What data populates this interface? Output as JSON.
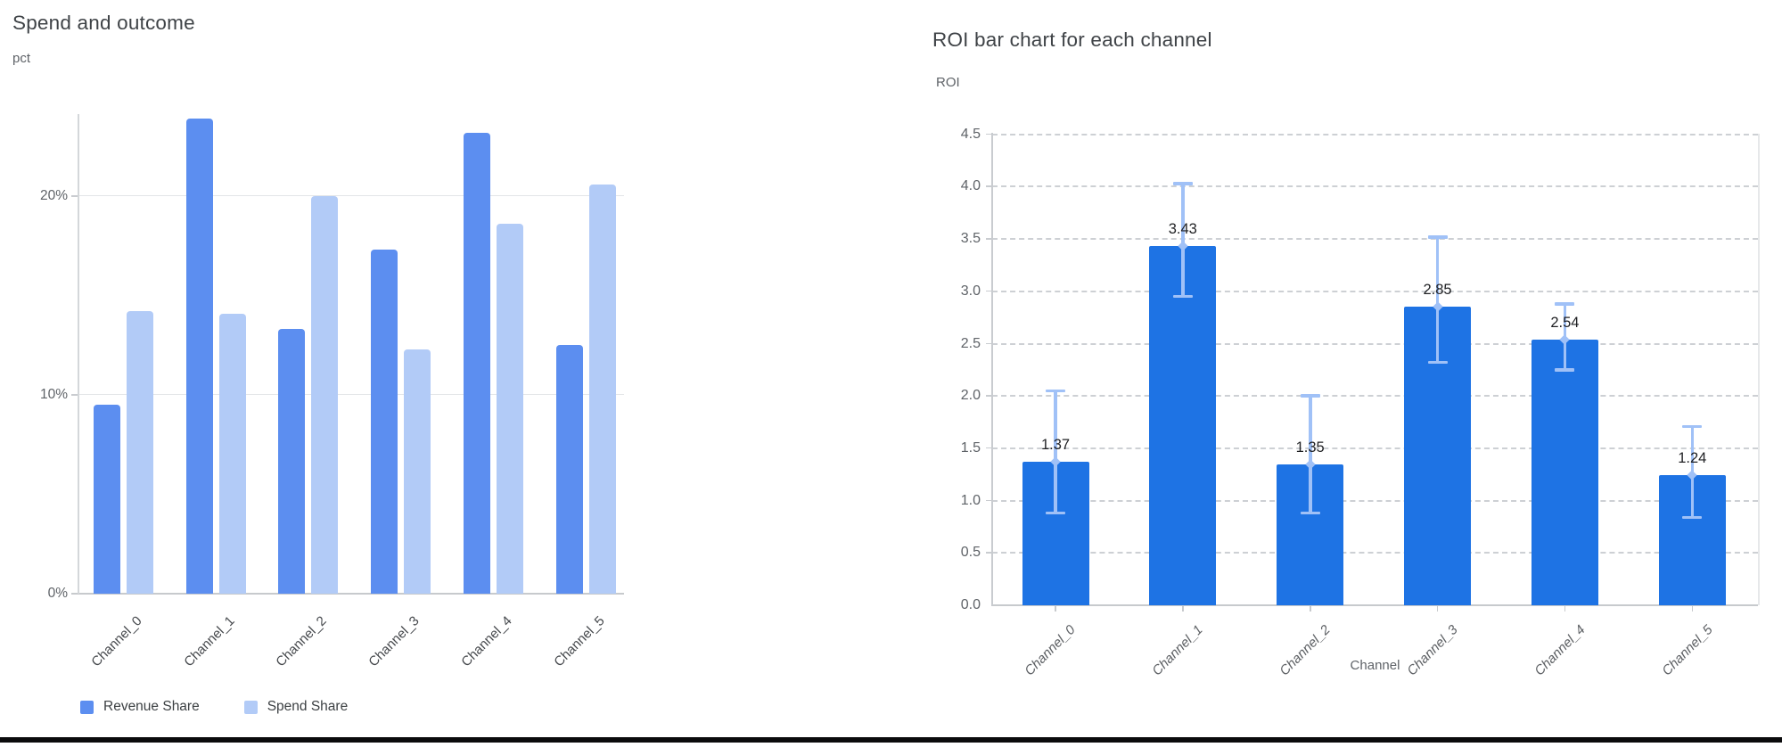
{
  "charts": {
    "left": {
      "title": "Spend and outcome",
      "y_unit_label": "pct"
    },
    "right": {
      "title": "ROI bar chart for each channel",
      "y_unit_label": "ROI",
      "x_axis_title": "Channel"
    }
  },
  "chart_data": [
    {
      "id": "spend-and-outcome",
      "type": "bar",
      "title": "Spend and outcome",
      "ylabel": "pct",
      "xlabel": "",
      "categories": [
        "Channel_0",
        "Channel_1",
        "Channel_2",
        "Channel_3",
        "Channel_4",
        "Channel_5"
      ],
      "series": [
        {
          "name": "Revenue Share",
          "color": "#5c8ef0",
          "values": [
            9.5,
            23.9,
            13.3,
            17.3,
            23.2,
            12.5
          ]
        },
        {
          "name": "Spend Share",
          "color": "#b2cbf7",
          "values": [
            14.2,
            14.1,
            20.0,
            12.3,
            18.6,
            20.6
          ]
        }
      ],
      "ylim": [
        0,
        25
      ],
      "yticks": [
        0,
        10,
        20
      ],
      "ytick_labels": [
        "0%",
        "10%",
        "20%"
      ],
      "grid": "horizontal-solid",
      "legend_position": "bottom"
    },
    {
      "id": "roi-by-channel",
      "type": "bar",
      "title": "ROI bar chart for each channel",
      "ylabel": "ROI",
      "xlabel": "Channel",
      "categories": [
        "Channel_0",
        "Channel_1",
        "Channel_2",
        "Channel_3",
        "Channel_4",
        "Channel_5"
      ],
      "values": [
        1.37,
        3.43,
        1.35,
        2.85,
        2.54,
        1.24
      ],
      "value_labels": [
        "1.37",
        "3.43",
        "1.35",
        "2.85",
        "2.54",
        "1.24"
      ],
      "error_low": [
        0.88,
        2.95,
        0.88,
        2.32,
        2.25,
        0.84
      ],
      "error_high": [
        2.05,
        4.03,
        2.0,
        3.52,
        2.88,
        1.71
      ],
      "bar_color": "#1e73e4",
      "error_color": "#a0c1f7",
      "ylim": [
        0,
        4.5
      ],
      "yticks": [
        0,
        0.5,
        1.0,
        1.5,
        2.0,
        2.5,
        3.0,
        3.5,
        4.0,
        4.5
      ],
      "ytick_labels": [
        "0.0",
        "0.5",
        "1.0",
        "1.5",
        "2.0",
        "2.5",
        "3.0",
        "3.5",
        "4.0",
        "4.5"
      ],
      "grid": "horizontal-dashed",
      "legend_position": "none"
    }
  ],
  "footer": {
    "border_color": "#0b0b0c"
  }
}
